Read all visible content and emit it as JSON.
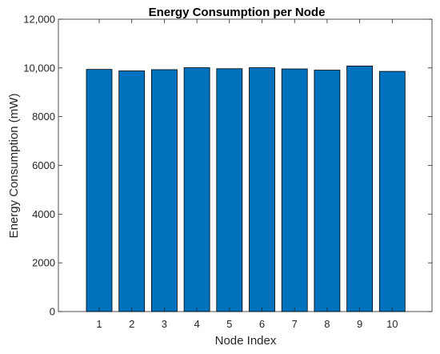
{
  "chart_data": {
    "type": "bar",
    "title": "Energy Consumption per Node",
    "xlabel": "Node Index",
    "ylabel": "Energy Consumption (mW)",
    "categories": [
      "1",
      "2",
      "3",
      "4",
      "5",
      "6",
      "7",
      "8",
      "9",
      "10"
    ],
    "values": [
      9940,
      9880,
      9930,
      10010,
      9970,
      10010,
      9960,
      9910,
      10080,
      9860
    ],
    "ylim": [
      0,
      12000
    ],
    "yticks": [
      0,
      2000,
      4000,
      6000,
      8000,
      10000,
      12000
    ],
    "ytick_labels": [
      "0",
      "2000",
      "4000",
      "6000",
      "8000",
      "10,000",
      "12,000"
    ],
    "grid": false,
    "legend": "none",
    "bar_color": "#0072BD",
    "bar_edge_color": "#000000"
  }
}
